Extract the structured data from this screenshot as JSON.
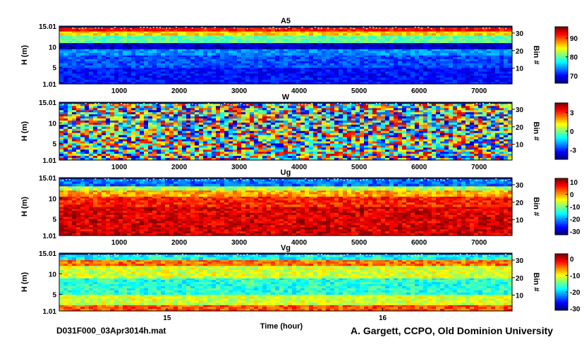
{
  "filename": "D031F000_03Apr3014h.mat",
  "credit": "A. Gargett, CCPO, Old Dominion University",
  "colors": {
    "axis": "#000000",
    "surface_band": "#001a66"
  },
  "chart_data": [
    {
      "type": "heatmap",
      "title": "A5",
      "ylabel": "H (m)",
      "y2label": "Bin #",
      "xticks": [
        "1000",
        "2000",
        "3000",
        "4000",
        "5000",
        "6000",
        "7000"
      ],
      "xrange": [
        0,
        7550
      ],
      "yticks": [
        "15.01",
        "10",
        "5",
        "1.01"
      ],
      "yrange": [
        1.01,
        15.01
      ],
      "bin_ticks": [
        "30",
        "20",
        "10"
      ],
      "bin_range": [
        1,
        34
      ],
      "colorbar_ticks": [
        "90",
        "80",
        "70"
      ],
      "colorbar_range": [
        66,
        96
      ],
      "layers": [
        {
          "h_bottom": 1.01,
          "h_top": 5.0,
          "value": 70
        },
        {
          "h_bottom": 5.0,
          "h_top": 8.0,
          "value": 72
        },
        {
          "h_bottom": 8.0,
          "h_top": 9.5,
          "value": 74
        },
        {
          "h_bottom": 9.5,
          "h_top": 11.0,
          "value": 68
        },
        {
          "h_bottom": 11.0,
          "h_top": 12.8,
          "value": 80
        },
        {
          "h_bottom": 12.8,
          "h_top": 13.8,
          "value": 86
        },
        {
          "h_bottom": 13.8,
          "h_top": 14.6,
          "value": 92
        }
      ],
      "noise": 2.0
    },
    {
      "type": "heatmap",
      "title": "W",
      "ylabel": "H (m)",
      "y2label": "Bin #",
      "xticks": [
        "1000",
        "2000",
        "3000",
        "4000",
        "5000",
        "6000",
        "7000"
      ],
      "xrange": [
        0,
        7550
      ],
      "yticks": [
        "15.01",
        "10",
        "5",
        "1.01"
      ],
      "yrange": [
        1.01,
        15.01
      ],
      "bin_ticks": [
        "30",
        "20",
        "10"
      ],
      "bin_range": [
        1,
        34
      ],
      "colorbar_ticks": [
        "3",
        "0",
        "-3"
      ],
      "colorbar_range": [
        -4.5,
        4.5
      ],
      "layers": [
        {
          "h_bottom": 1.01,
          "h_top": 14.6,
          "value": 0
        }
      ],
      "noise": 4.0
    },
    {
      "type": "heatmap",
      "title": "Ug",
      "ylabel": "H (m)",
      "y2label": "Bin #",
      "xticks": [
        "1000",
        "2000",
        "3000",
        "4000",
        "5000",
        "6000",
        "7000"
      ],
      "xrange": [
        0,
        7550
      ],
      "yticks": [
        "15.01",
        "10",
        "5",
        "1.01"
      ],
      "yrange": [
        1.01,
        15.01
      ],
      "bin_ticks": [
        "30",
        "20",
        "10"
      ],
      "bin_range": [
        1,
        34
      ],
      "colorbar_ticks": [
        "10",
        "0",
        "-10",
        "-20",
        "-30"
      ],
      "colorbar_range": [
        -33,
        13
      ],
      "layers": [
        {
          "h_bottom": 1.01,
          "h_top": 8.0,
          "value": 9
        },
        {
          "h_bottom": 8.0,
          "h_top": 10.5,
          "value": 6
        },
        {
          "h_bottom": 10.5,
          "h_top": 12.0,
          "value": 0
        },
        {
          "h_bottom": 12.0,
          "h_top": 13.0,
          "value": -8
        },
        {
          "h_bottom": 13.0,
          "h_top": 14.6,
          "value": -22
        }
      ],
      "noise": 4.0
    },
    {
      "type": "heatmap",
      "title": "Vg",
      "ylabel": "H (m)",
      "y2label": "Bin #",
      "xticks": [
        "15",
        "16"
      ],
      "xrange": [
        14.5,
        16.6
      ],
      "xlabel": "Time (hour)",
      "yticks": [
        "15.01",
        "10",
        "5",
        "1.01"
      ],
      "yrange": [
        1.01,
        15.01
      ],
      "bin_ticks": [
        "30",
        "20",
        "10"
      ],
      "bin_range": [
        1,
        34
      ],
      "colorbar_ticks": [
        "0",
        "-10",
        "-20",
        "-30"
      ],
      "colorbar_range": [
        -31,
        3
      ],
      "layers": [
        {
          "h_bottom": 1.01,
          "h_top": 2.5,
          "value": -4
        },
        {
          "h_bottom": 2.5,
          "h_top": 5.0,
          "value": -11
        },
        {
          "h_bottom": 5.0,
          "h_top": 9.0,
          "value": -17
        },
        {
          "h_bottom": 9.0,
          "h_top": 12.0,
          "value": -11
        },
        {
          "h_bottom": 12.0,
          "h_top": 13.4,
          "value": -5
        },
        {
          "h_bottom": 13.4,
          "h_top": 14.6,
          "value": -18
        }
      ],
      "noise": 3.0
    }
  ]
}
